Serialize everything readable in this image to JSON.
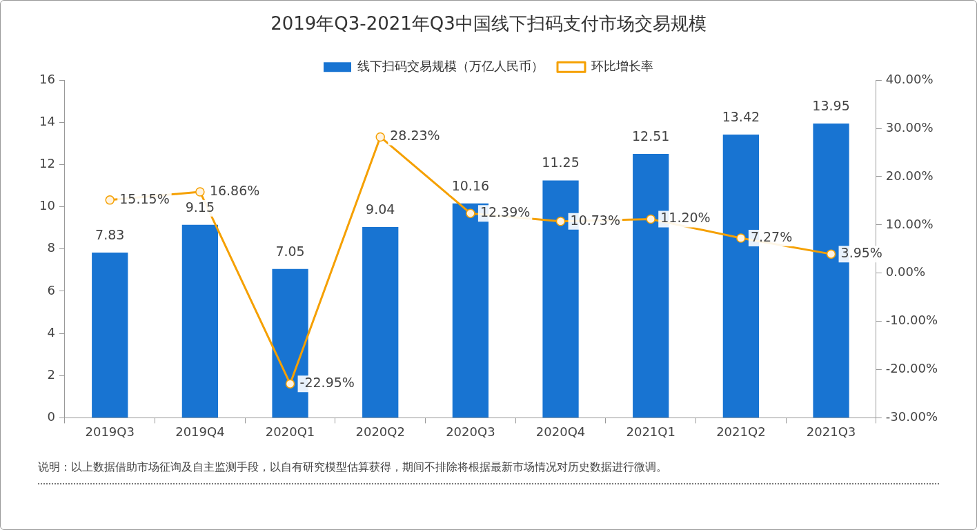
{
  "chart_data": {
    "type": "bar",
    "title": "2019年Q3-2021年Q3中国线下扫码支付市场交易规模",
    "categories": [
      "2019Q3",
      "2019Q4",
      "2020Q1",
      "2020Q2",
      "2020Q3",
      "2020Q4",
      "2021Q1",
      "2021Q2",
      "2021Q3"
    ],
    "series": [
      {
        "name": "线下扫码交易规模（万亿人民币）",
        "color": "#1874d2",
        "values": [
          7.83,
          9.15,
          7.05,
          9.04,
          10.16,
          11.25,
          12.51,
          13.42,
          13.95
        ],
        "value_labels": [
          "7.83",
          "9.15",
          "7.05",
          "9.04",
          "10.16",
          "11.25",
          "12.51",
          "13.42",
          "13.95"
        ]
      },
      {
        "name": "环比增长率",
        "type": "line",
        "axis": "y2",
        "color": "#f5a000",
        "values": [
          15.15,
          16.86,
          -22.95,
          28.23,
          12.39,
          10.73,
          11.2,
          7.27,
          3.95
        ],
        "value_labels": [
          "15.15%",
          "16.86%",
          "-22.95%",
          "28.23%",
          "12.39%",
          "10.73%",
          "11.20%",
          "7.27%",
          "3.95%"
        ]
      }
    ],
    "ylim": [
      0,
      16
    ],
    "yticks": [
      0,
      2,
      4,
      6,
      8,
      10,
      12,
      14,
      16
    ],
    "y2lim": [
      -30,
      40
    ],
    "y2ticks": [
      {
        "value": -30,
        "label": "-30.00%"
      },
      {
        "value": -20,
        "label": "-20.00%"
      },
      {
        "value": -10,
        "label": "-10.00%"
      },
      {
        "value": 0,
        "label": "0.00%"
      },
      {
        "value": 10,
        "label": "10.00%"
      },
      {
        "value": 20,
        "label": "20.00%"
      },
      {
        "value": 30,
        "label": "30.00%"
      },
      {
        "value": 40,
        "label": "40.00%"
      }
    ],
    "legend": "top",
    "marker": "circle",
    "line_style": "solid",
    "annotations": [
      "说明：以上数据借助市场征询及自主监测手段，以自有研究模型估算获得，期间不排除将根据最新市场情况对历史数据进行微调。"
    ]
  }
}
